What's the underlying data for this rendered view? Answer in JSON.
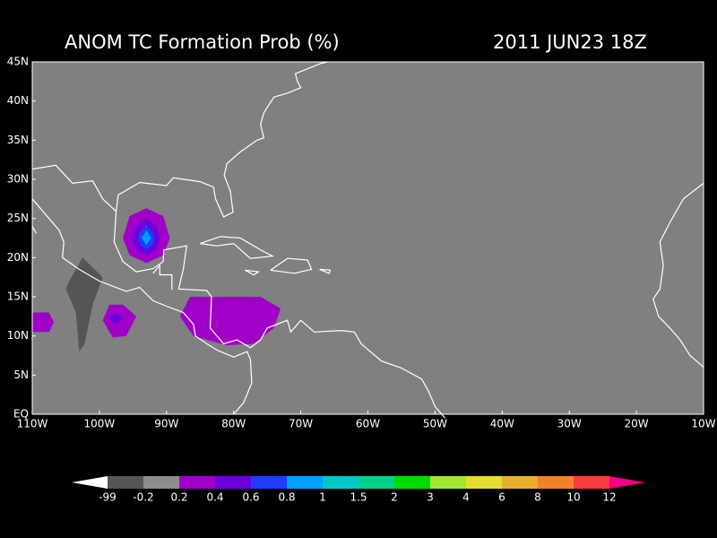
{
  "header": {
    "title": "ANOM TC Formation Prob (%)",
    "valid_time": "2011 JUN23 18Z"
  },
  "map": {
    "lat_labels": [
      "45N",
      "40N",
      "35N",
      "30N",
      "25N",
      "20N",
      "15N",
      "10N",
      "5N",
      "EQ"
    ],
    "lon_labels": [
      "110W",
      "100W",
      "90W",
      "80W",
      "70W",
      "60W",
      "50W",
      "40W",
      "30W",
      "20W",
      "10W"
    ]
  },
  "colorbar": {
    "labels": [
      "-99",
      "-0.2",
      "0.2",
      "0.4",
      "0.6",
      "0.8",
      "1",
      "1.5",
      "2",
      "3",
      "4",
      "6",
      "8",
      "10",
      "12"
    ],
    "colors": [
      "#ffffff",
      "#555555",
      "#8c8c8c",
      "#a000c8",
      "#6e00dc",
      "#1e3cff",
      "#00a0ff",
      "#00c8c8",
      "#00d28c",
      "#00dc00",
      "#a0e632",
      "#e6dc32",
      "#e6af2d",
      "#f08228",
      "#fa3c3c",
      "#f00082"
    ]
  }
}
